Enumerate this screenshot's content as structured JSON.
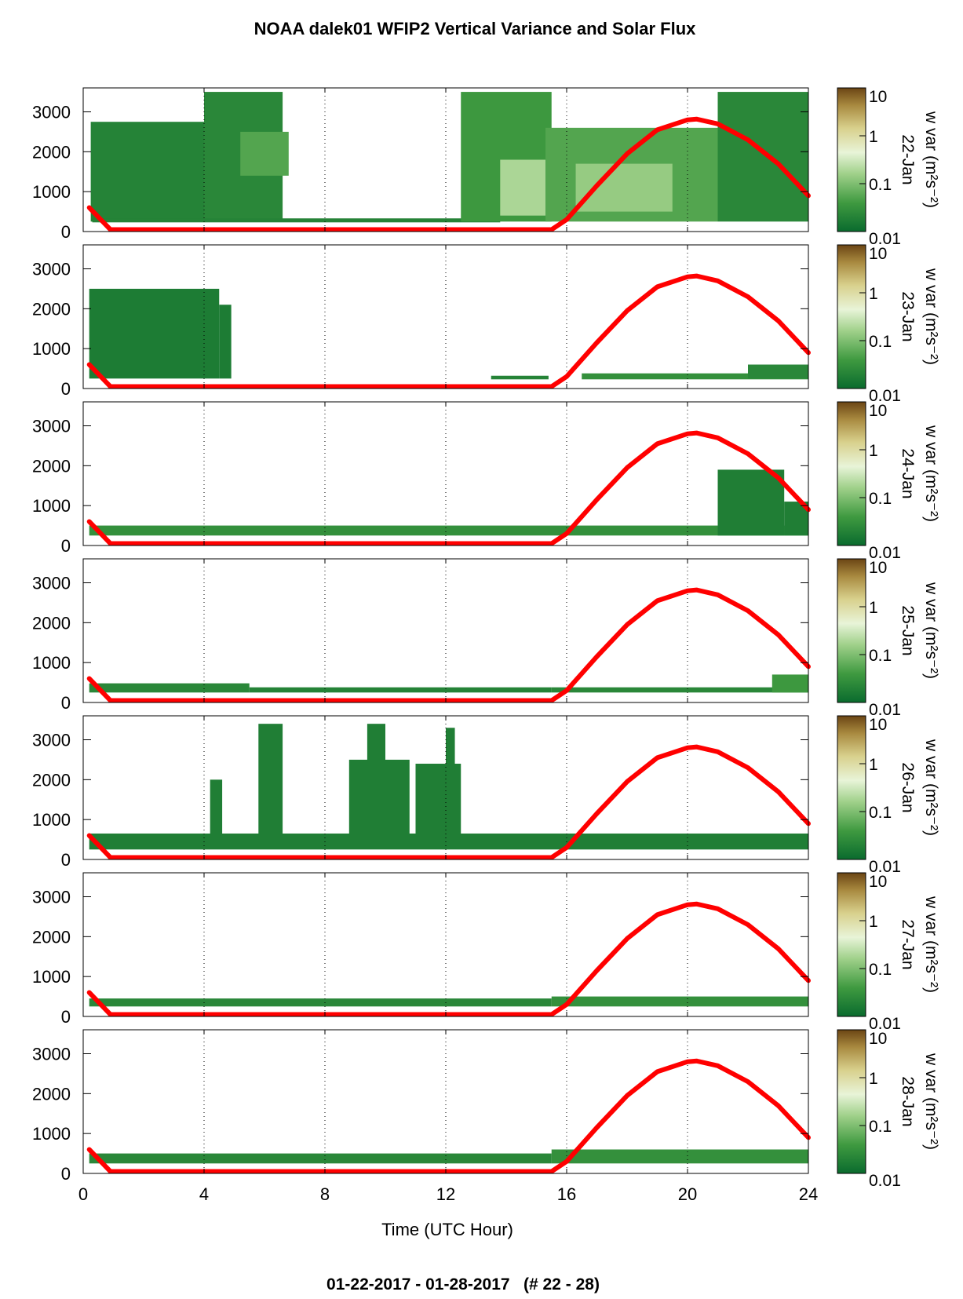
{
  "title": "NOAA dalek01 WFIP2 Vertical Variance and Solar Flux",
  "footer": "01-22-2017 - 01-28-2017   (# 22 - 28)",
  "chart_data": {
    "type": "heatmap",
    "xlabel": "Time (UTC Hour)",
    "x_ticks": [
      "0",
      "4",
      "8",
      "12",
      "16",
      "20",
      "24"
    ],
    "xlim": [
      0,
      24
    ],
    "ylim": [
      0,
      3600
    ],
    "y_ticks": [
      "0",
      "1000",
      "2000",
      "3000"
    ],
    "grid": "vertical dotted lines at 4, 8, 12, 16, 20",
    "colorbar": {
      "label": "w var (m²s⁻²)",
      "tick_labels": [
        "0.01",
        "0.1",
        "1",
        "10"
      ],
      "scale": "log",
      "range": [
        0.01,
        10
      ],
      "colors": [
        "#0a6b2e",
        "#3f9a40",
        "#9fd089",
        "#e8f4d8",
        "#d8d08c",
        "#a8893f",
        "#6b4514"
      ]
    },
    "solar_flux_curve": {
      "color": "#ff0000",
      "hours": [
        0.2,
        0.9,
        15.5,
        16,
        17,
        18,
        19,
        20,
        20.3,
        21,
        22,
        23,
        24
      ],
      "heights": [
        600,
        50,
        50,
        300,
        1150,
        1950,
        2550,
        2800,
        2820,
        2700,
        2300,
        1700,
        900
      ]
    },
    "panels": [
      {
        "date": "22-Jan",
        "cells": [
          {
            "t0": 0.25,
            "t1": 4.0,
            "z0": 250,
            "z1": 2750,
            "v": 0.018
          },
          {
            "t0": 4.0,
            "t1": 6.6,
            "z0": 250,
            "z1": 3500,
            "v": 0.02
          },
          {
            "t0": 5.2,
            "t1": 6.8,
            "z0": 1400,
            "z1": 2500,
            "v": 0.04
          },
          {
            "t0": 0.3,
            "t1": 13.8,
            "z0": 230,
            "z1": 330,
            "v": 0.018
          },
          {
            "t0": 12.5,
            "t1": 15.5,
            "z0": 250,
            "z1": 3500,
            "v": 0.03
          },
          {
            "t0": 13.8,
            "t1": 15.3,
            "z0": 400,
            "z1": 1800,
            "v": 0.12
          },
          {
            "t0": 15.3,
            "t1": 21,
            "z0": 250,
            "z1": 2600,
            "v": 0.04
          },
          {
            "t0": 16.3,
            "t1": 19.5,
            "z0": 500,
            "z1": 1700,
            "v": 0.09
          },
          {
            "t0": 21,
            "t1": 24,
            "z0": 250,
            "z1": 3500,
            "v": 0.02
          }
        ]
      },
      {
        "date": "23-Jan",
        "cells": [
          {
            "t0": 0.2,
            "t1": 4.5,
            "z0": 250,
            "z1": 2500,
            "v": 0.015
          },
          {
            "t0": 4.5,
            "t1": 4.9,
            "z0": 250,
            "z1": 2100,
            "v": 0.015
          },
          {
            "t0": 13.5,
            "t1": 15.4,
            "z0": 230,
            "z1": 320,
            "v": 0.018
          },
          {
            "t0": 16.5,
            "t1": 24,
            "z0": 230,
            "z1": 380,
            "v": 0.025
          },
          {
            "t0": 22,
            "t1": 24,
            "z0": 250,
            "z1": 600,
            "v": 0.02
          }
        ]
      },
      {
        "date": "24-Jan",
        "cells": [
          {
            "t0": 0.2,
            "t1": 24,
            "z0": 250,
            "z1": 500,
            "v": 0.025
          },
          {
            "t0": 21,
            "t1": 23.2,
            "z0": 250,
            "z1": 1900,
            "v": 0.016
          },
          {
            "t0": 23.2,
            "t1": 24,
            "z0": 250,
            "z1": 1100,
            "v": 0.016
          }
        ]
      },
      {
        "date": "25-Jan",
        "cells": [
          {
            "t0": 0.2,
            "t1": 5.5,
            "z0": 250,
            "z1": 480,
            "v": 0.02
          },
          {
            "t0": 5.5,
            "t1": 15.5,
            "z0": 250,
            "z1": 380,
            "v": 0.018
          },
          {
            "t0": 15.5,
            "t1": 24,
            "z0": 250,
            "z1": 380,
            "v": 0.02
          },
          {
            "t0": 22.8,
            "t1": 24,
            "z0": 250,
            "z1": 700,
            "v": 0.03
          }
        ]
      },
      {
        "date": "26-Jan",
        "cells": [
          {
            "t0": 0.2,
            "t1": 24,
            "z0": 250,
            "z1": 650,
            "v": 0.016
          },
          {
            "t0": 4.2,
            "t1": 4.6,
            "z0": 600,
            "z1": 2000,
            "v": 0.016
          },
          {
            "t0": 5.8,
            "t1": 6.6,
            "z0": 500,
            "z1": 3400,
            "v": 0.016
          },
          {
            "t0": 8.8,
            "t1": 10.8,
            "z0": 500,
            "z1": 2500,
            "v": 0.016
          },
          {
            "t0": 9.4,
            "t1": 10.0,
            "z0": 2400,
            "z1": 3400,
            "v": 0.016
          },
          {
            "t0": 11.0,
            "t1": 12.5,
            "z0": 500,
            "z1": 2400,
            "v": 0.016
          },
          {
            "t0": 12.0,
            "t1": 12.3,
            "z0": 2200,
            "z1": 3300,
            "v": 0.016
          }
        ]
      },
      {
        "date": "27-Jan",
        "cells": [
          {
            "t0": 0.2,
            "t1": 15.5,
            "z0": 250,
            "z1": 450,
            "v": 0.02
          },
          {
            "t0": 15.5,
            "t1": 24,
            "z0": 250,
            "z1": 500,
            "v": 0.025
          }
        ]
      },
      {
        "date": "28-Jan",
        "cells": [
          {
            "t0": 0.2,
            "t1": 15.5,
            "z0": 250,
            "z1": 500,
            "v": 0.02
          },
          {
            "t0": 15.5,
            "t1": 24,
            "z0": 250,
            "z1": 600,
            "v": 0.025
          }
        ]
      }
    ]
  }
}
